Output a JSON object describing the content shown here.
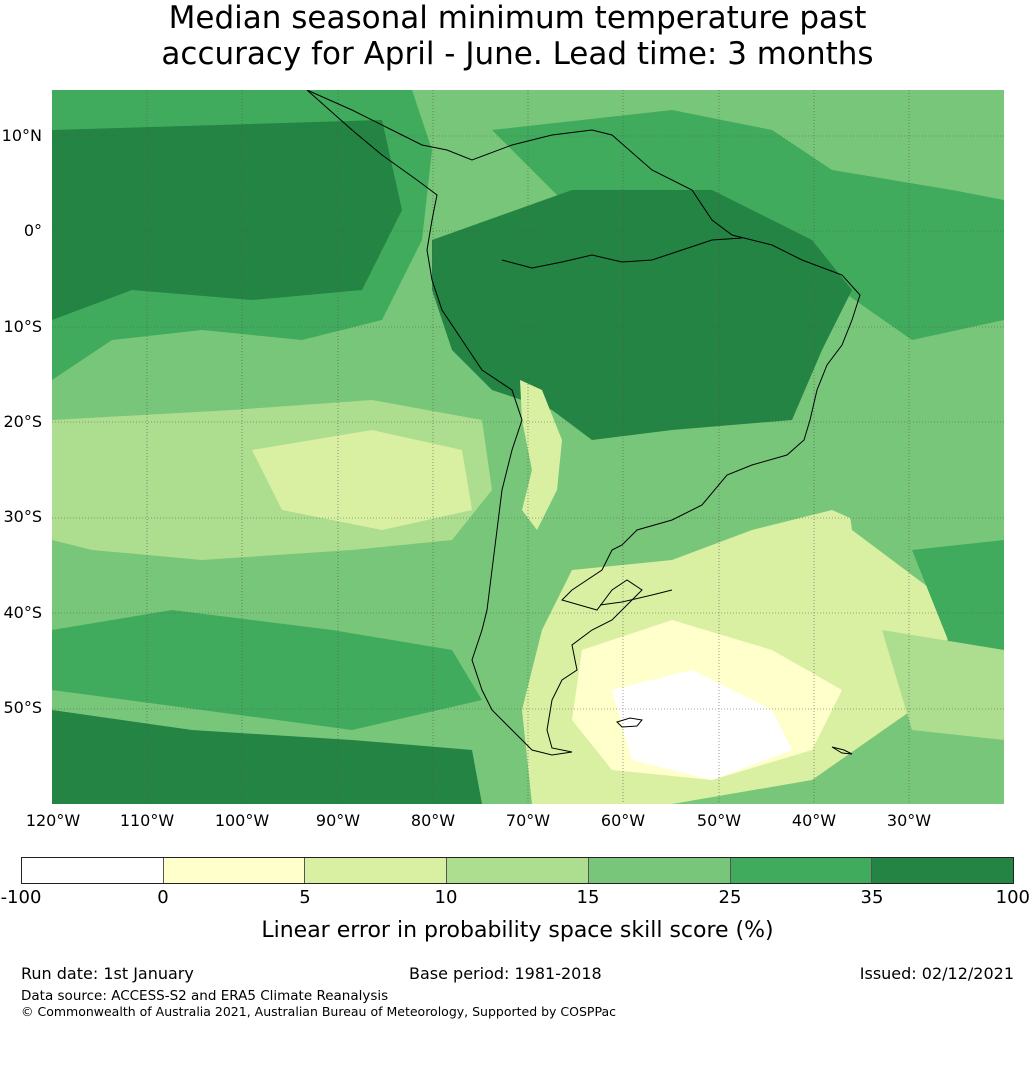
{
  "title_line1": "Median seasonal minimum temperature past",
  "title_line2": "accuracy for April - June. Lead time: 3 months",
  "map": {
    "lat_labels": [
      "10°N",
      "0°",
      "10°S",
      "20°S",
      "30°S",
      "40°S",
      "50°S"
    ],
    "lon_labels": [
      "120°W",
      "110°W",
      "100°W",
      "90°W",
      "80°W",
      "70°W",
      "60°W",
      "50°W",
      "40°W",
      "30°W"
    ]
  },
  "colorbar": {
    "ticks": [
      "-100",
      "0",
      "5",
      "10",
      "15",
      "25",
      "35",
      "100"
    ],
    "colors": [
      "#ffffff",
      "#ffffcc",
      "#d9f0a3",
      "#addd8e",
      "#78c679",
      "#41ab5d",
      "#238443"
    ],
    "label": "Linear error in probability space skill score (%)"
  },
  "footer": {
    "run_date": "Run date: 1st January",
    "base_period": "Base period: 1981-2018",
    "issued": "Issued: 02/12/2021",
    "data_source": "Data source: ACCESS-S2 and ERA5 Climate Reanalysis",
    "copyright": "© Commonwealth of Australia 2021, Australian Bureau of Meteorology, Supported by COSPPac"
  }
}
